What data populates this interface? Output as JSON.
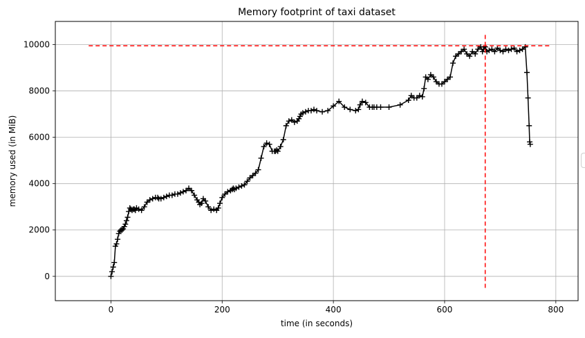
{
  "chart_data": {
    "type": "line",
    "title": "Memory footprint of taxi dataset",
    "xlabel": "time (in seconds)",
    "ylabel": "memory used (in MiB)",
    "xlim": [
      -100,
      840
    ],
    "ylim": [
      -1050,
      11000
    ],
    "x_ticks": [
      0,
      200,
      400,
      600,
      800
    ],
    "y_ticks": [
      0,
      2000,
      4000,
      6000,
      8000,
      10000
    ],
    "grid": true,
    "colors": {
      "series": "#000000",
      "reference": "#ff0000",
      "grid": "#b0b0b0"
    },
    "series": [
      {
        "marker": "+",
        "x": [
          0,
          2,
          4,
          6,
          8,
          10,
          12,
          14,
          16,
          18,
          20,
          22,
          24,
          26,
          28,
          30,
          32,
          34,
          36,
          38,
          40,
          42,
          44,
          46,
          50,
          55,
          60,
          65,
          70,
          75,
          80,
          84,
          86,
          90,
          95,
          100,
          105,
          110,
          115,
          120,
          125,
          130,
          135,
          140,
          145,
          150,
          155,
          158,
          160,
          163,
          166,
          170,
          175,
          180,
          185,
          190,
          193,
          196,
          200,
          205,
          210,
          215,
          218,
          220,
          222,
          225,
          230,
          235,
          240,
          245,
          250,
          255,
          260,
          265,
          270,
          275,
          280,
          285,
          290,
          294,
          296,
          298,
          300,
          305,
          310,
          315,
          320,
          325,
          330,
          335,
          338,
          340,
          342,
          345,
          350,
          355,
          360,
          365,
          370,
          380,
          390,
          400,
          410,
          420,
          430,
          440,
          445,
          448,
          452,
          458,
          465,
          470,
          473,
          478,
          485,
          500,
          520,
          535,
          540,
          545,
          550,
          555,
          560,
          563,
          566,
          570,
          575,
          580,
          585,
          590,
          595,
          600,
          605,
          610,
          615,
          620,
          625,
          630,
          635,
          640,
          645,
          650,
          655,
          660,
          665,
          668,
          670,
          673,
          676,
          680,
          685,
          690,
          695,
          700,
          705,
          710,
          715,
          720,
          725,
          730,
          735,
          740,
          745,
          748,
          750,
          752,
          753,
          754
        ],
        "y": [
          0,
          200,
          400,
          600,
          1300,
          1400,
          1600,
          1850,
          1950,
          2000,
          2000,
          2050,
          2150,
          2250,
          2400,
          2550,
          2800,
          2950,
          2900,
          2850,
          2900,
          2900,
          2850,
          2950,
          2900,
          2850,
          3000,
          3200,
          3300,
          3350,
          3400,
          3400,
          3350,
          3350,
          3400,
          3450,
          3500,
          3500,
          3550,
          3550,
          3600,
          3650,
          3700,
          3800,
          3700,
          3500,
          3300,
          3200,
          3100,
          3150,
          3350,
          3250,
          3000,
          2850,
          2900,
          2850,
          2950,
          3150,
          3400,
          3550,
          3650,
          3700,
          3750,
          3800,
          3750,
          3800,
          3850,
          3900,
          3950,
          4100,
          4250,
          4350,
          4450,
          4600,
          5100,
          5600,
          5750,
          5700,
          5400,
          5400,
          5400,
          5450,
          5400,
          5600,
          5900,
          6500,
          6700,
          6750,
          6650,
          6700,
          6800,
          6900,
          7000,
          7050,
          7100,
          7150,
          7150,
          7200,
          7150,
          7100,
          7150,
          7350,
          7550,
          7300,
          7200,
          7150,
          7200,
          7400,
          7550,
          7500,
          7300,
          7300,
          7300,
          7300,
          7300,
          7300,
          7400,
          7600,
          7800,
          7700,
          7700,
          7800,
          7750,
          8100,
          8600,
          8500,
          8700,
          8600,
          8400,
          8300,
          8300,
          8400,
          8500,
          8600,
          9200,
          9500,
          9600,
          9700,
          9800,
          9600,
          9500,
          9700,
          9600,
          9800,
          9900,
          9700,
          9800,
          9900,
          9700,
          9750,
          9800,
          9700,
          9850,
          9750,
          9700,
          9800,
          9750,
          9800,
          9850,
          9700,
          9750,
          9800,
          9900,
          8800,
          7700,
          6500,
          5800,
          5700
        ]
      }
    ],
    "reference_lines": [
      {
        "orientation": "horizontal",
        "value": 9950,
        "from": -40,
        "to": 793,
        "style": "dashed"
      },
      {
        "orientation": "vertical",
        "value": 673,
        "from": -500,
        "to": 10450,
        "style": "dashed"
      }
    ]
  }
}
